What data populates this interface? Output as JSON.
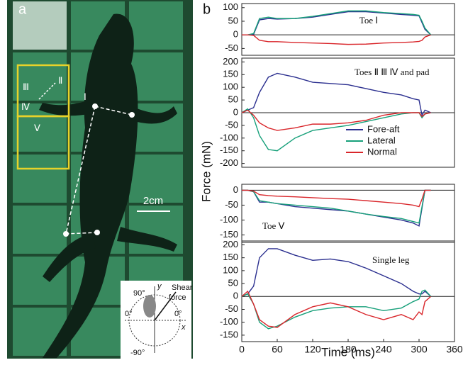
{
  "panel_a": {
    "label": "a",
    "toes": [
      "Ⅰ",
      "Ⅱ",
      "Ⅲ",
      "Ⅳ",
      "Ⅴ"
    ],
    "scale_bar": "2cm",
    "inset": {
      "top": "90°",
      "bottom": "-90°",
      "left": "0°",
      "right": "0°",
      "y_axis": "y",
      "x_axis": "x",
      "arrow_line1": "Shear",
      "arrow_line2": "force"
    }
  },
  "panel_b_label": "b",
  "chart_data": [
    {
      "type": "line",
      "annotation": "Toe Ⅰ",
      "xlim": [
        0,
        360
      ],
      "ylim": [
        -75,
        115
      ],
      "yticks": [
        -50,
        0,
        50,
        100
      ],
      "x": [
        0,
        10,
        20,
        30,
        45,
        60,
        90,
        120,
        150,
        180,
        210,
        240,
        270,
        290,
        300,
        305,
        310,
        320
      ],
      "series": [
        {
          "name": "Fore-aft",
          "color": "#2b2f8f",
          "values": [
            0,
            0,
            2,
            55,
            60,
            58,
            60,
            65,
            75,
            85,
            85,
            80,
            75,
            72,
            70,
            45,
            20,
            0
          ]
        },
        {
          "name": "Lateral",
          "color": "#17a07a",
          "values": [
            0,
            0,
            5,
            60,
            65,
            60,
            60,
            68,
            78,
            88,
            88,
            82,
            78,
            75,
            72,
            50,
            25,
            0
          ]
        },
        {
          "name": "Normal",
          "color": "#d9262b",
          "values": [
            0,
            0,
            -2,
            -20,
            -25,
            -25,
            -28,
            -30,
            -32,
            -35,
            -34,
            -30,
            -28,
            -26,
            -24,
            -20,
            -8,
            0
          ]
        }
      ]
    },
    {
      "type": "line",
      "annotation": "Toes Ⅱ Ⅲ Ⅳ and pad",
      "ylabel": "Force (mN)",
      "legend": "lower right",
      "xlim": [
        0,
        360
      ],
      "ylim": [
        -215,
        215
      ],
      "yticks": [
        -200,
        -150,
        -100,
        -50,
        0,
        50,
        100,
        150,
        200
      ],
      "x": [
        0,
        10,
        20,
        30,
        45,
        60,
        90,
        120,
        150,
        180,
        210,
        240,
        270,
        290,
        300,
        305,
        310,
        320
      ],
      "series": [
        {
          "name": "Fore-aft",
          "color": "#2b2f8f",
          "values": [
            0,
            10,
            20,
            80,
            140,
            155,
            140,
            120,
            115,
            110,
            95,
            80,
            70,
            55,
            50,
            -10,
            10,
            0
          ]
        },
        {
          "name": "Lateral",
          "color": "#17a07a",
          "values": [
            0,
            15,
            -20,
            -90,
            -145,
            -150,
            -100,
            -70,
            -60,
            -50,
            -35,
            -20,
            -5,
            0,
            0,
            -20,
            -5,
            0
          ]
        },
        {
          "name": "Normal",
          "color": "#d9262b",
          "values": [
            0,
            10,
            -10,
            -40,
            -60,
            -70,
            -60,
            -45,
            -45,
            -40,
            -30,
            -10,
            0,
            0,
            0,
            -15,
            -5,
            0
          ]
        }
      ]
    },
    {
      "type": "line",
      "annotation": "Toe Ⅴ",
      "xlim": [
        0,
        360
      ],
      "ylim": [
        -175,
        20
      ],
      "yticks": [
        -150,
        -100,
        -50,
        0
      ],
      "x": [
        0,
        10,
        20,
        30,
        45,
        60,
        90,
        120,
        150,
        180,
        210,
        240,
        270,
        290,
        300,
        305,
        310,
        320
      ],
      "series": [
        {
          "name": "Fore-aft",
          "color": "#2b2f8f",
          "values": [
            0,
            0,
            -5,
            -40,
            -40,
            -45,
            -55,
            -60,
            -65,
            -70,
            -80,
            -90,
            -100,
            -110,
            -120,
            -60,
            0,
            0
          ]
        },
        {
          "name": "Lateral",
          "color": "#17a07a",
          "values": [
            0,
            0,
            -5,
            -35,
            -40,
            -45,
            -50,
            -55,
            -60,
            -70,
            -80,
            -88,
            -95,
            -105,
            -110,
            -55,
            0,
            0
          ]
        },
        {
          "name": "Normal",
          "color": "#d9262b",
          "values": [
            0,
            0,
            -3,
            -15,
            -18,
            -20,
            -22,
            -25,
            -28,
            -30,
            -35,
            -40,
            -45,
            -50,
            -55,
            -30,
            0,
            0
          ]
        }
      ]
    },
    {
      "type": "line",
      "annotation": "Single leg",
      "xlabel": "Time (ms)",
      "xlim": [
        0,
        360
      ],
      "xticks": [
        0,
        60,
        120,
        180,
        240,
        300,
        360
      ],
      "ylim": [
        -175,
        215
      ],
      "yticks": [
        -150,
        -100,
        -50,
        0,
        50,
        100,
        150,
        200
      ],
      "x": [
        0,
        10,
        20,
        30,
        45,
        60,
        90,
        120,
        150,
        180,
        210,
        240,
        270,
        290,
        300,
        305,
        310,
        320
      ],
      "series": [
        {
          "name": "Fore-aft",
          "color": "#2b2f8f",
          "values": [
            0,
            10,
            40,
            150,
            185,
            185,
            160,
            140,
            145,
            135,
            110,
            80,
            50,
            20,
            10,
            10,
            20,
            0
          ]
        },
        {
          "name": "Lateral",
          "color": "#17a07a",
          "values": [
            0,
            10,
            -30,
            -100,
            -125,
            -115,
            -80,
            -55,
            -45,
            -40,
            -40,
            -55,
            -45,
            -20,
            -10,
            20,
            25,
            0
          ]
        },
        {
          "name": "Normal",
          "color": "#d9262b",
          "values": [
            0,
            20,
            -30,
            -90,
            -115,
            -120,
            -70,
            -40,
            -25,
            -40,
            -70,
            -90,
            -70,
            -90,
            -60,
            -70,
            -20,
            0
          ]
        }
      ]
    }
  ]
}
